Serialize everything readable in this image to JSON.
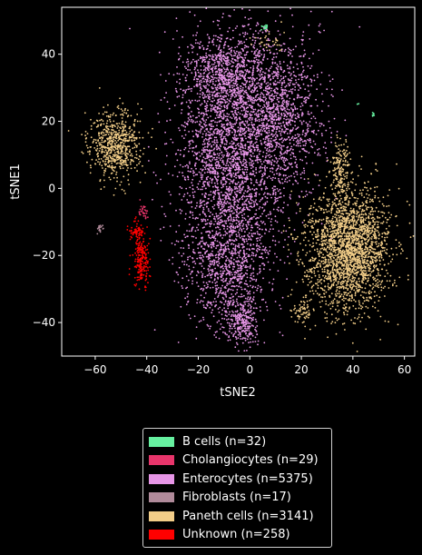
{
  "chart_data": {
    "type": "scatter",
    "title": "",
    "xlabel": "tSNE2",
    "ylabel": "tSNE1",
    "xlim": [
      -73,
      64
    ],
    "ylim": [
      -50,
      54
    ],
    "xticks": [
      -60,
      -40,
      -20,
      0,
      20,
      40,
      60
    ],
    "yticks": [
      -40,
      -20,
      0,
      20,
      40
    ],
    "xtick_labels": [
      "−60",
      "−40",
      "−20",
      "0",
      "20",
      "40",
      "60"
    ],
    "ytick_labels": [
      "−40",
      "−20",
      "0",
      "20",
      "40"
    ],
    "grid": false,
    "legend_position": "below",
    "series": [
      {
        "name": "B cells (n=32)",
        "color": "#66f0a0",
        "count": 32,
        "clusters": [
          {
            "cx": 6,
            "cy": 48,
            "sx": 0.5,
            "sy": 0.5,
            "w": 0.5
          },
          {
            "cx": 42,
            "cy": 25,
            "sx": 0.3,
            "sy": 0.3,
            "w": 0.2
          },
          {
            "cx": 48,
            "cy": 22,
            "sx": 0.4,
            "sy": 0.4,
            "w": 0.3
          }
        ]
      },
      {
        "name": "Cholangiocytes (n=29)",
        "color": "#e8356b",
        "count": 29,
        "clusters": [
          {
            "cx": -41,
            "cy": -7,
            "sx": 1,
            "sy": 1.2,
            "w": 1
          }
        ]
      },
      {
        "name": "Enterocytes (n=5375)",
        "color": "#e695e6",
        "count": 5375,
        "clusters": [
          {
            "cx": -8,
            "cy": 8,
            "sx": 10,
            "sy": 18,
            "w": 0.45
          },
          {
            "cx": 10,
            "cy": 22,
            "sx": 9,
            "sy": 12,
            "w": 0.25
          },
          {
            "cx": -10,
            "cy": 34,
            "sx": 8,
            "sy": 6,
            "w": 0.12
          },
          {
            "cx": -8,
            "cy": -25,
            "sx": 8,
            "sy": 9,
            "w": 0.13
          },
          {
            "cx": -3,
            "cy": -40,
            "sx": 3,
            "sy": 3,
            "w": 0.05
          }
        ]
      },
      {
        "name": "Fibroblasts (n=17)",
        "color": "#b08a9a",
        "count": 17,
        "clusters": [
          {
            "cx": -58,
            "cy": -12,
            "sx": 0.6,
            "sy": 0.6,
            "w": 1
          }
        ]
      },
      {
        "name": "Paneth cells (n=3141)",
        "color": "#f2cd88",
        "count": 3141,
        "clusters": [
          {
            "cx": -52,
            "cy": 13,
            "sx": 5,
            "sy": 5,
            "w": 0.2
          },
          {
            "cx": 38,
            "cy": -18,
            "sx": 8,
            "sy": 9,
            "w": 0.72
          },
          {
            "cx": 35,
            "cy": 5,
            "sx": 2,
            "sy": 5,
            "w": 0.05
          },
          {
            "cx": 20,
            "cy": -37,
            "sx": 2,
            "sy": 2,
            "w": 0.02
          },
          {
            "cx": 8,
            "cy": 44,
            "sx": 3,
            "sy": 2,
            "w": 0.01
          }
        ]
      },
      {
        "name": "Unknown (n=258)",
        "color": "#ff0000",
        "count": 258,
        "clusters": [
          {
            "cx": -44,
            "cy": -13,
            "sx": 1.5,
            "sy": 1.5,
            "w": 0.3
          },
          {
            "cx": -42,
            "cy": -22,
            "sx": 1.5,
            "sy": 3.5,
            "w": 0.7
          }
        ]
      }
    ]
  }
}
